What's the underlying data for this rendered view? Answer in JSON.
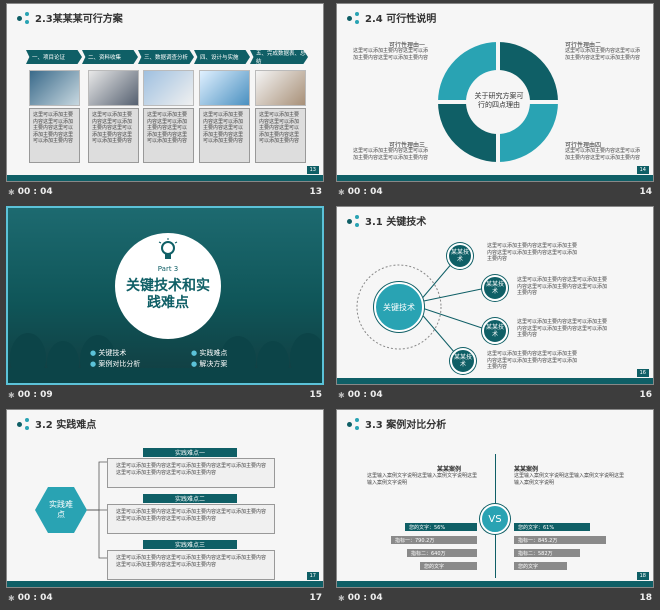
{
  "slides": [
    {
      "num": "13",
      "time": "00 : 04",
      "slide_num": "13",
      "title": "2.3某某某可行方案",
      "steps": [
        "一、项目论证",
        "二、资料收集",
        "三、数据调查分析",
        "四、设计与实施",
        "五、完成数据表、总结"
      ],
      "text": "这里可以添加主要内容这里可以添加主要内容这里可以添加主要内容这里可以添加主要内容"
    },
    {
      "num": "14",
      "time": "00 : 04",
      "slide_num": "14",
      "title": "2.4 可行性说明",
      "center": "关于研究方案可行的四点理由",
      "reasons": [
        "可行性理由一",
        "可行性理由二",
        "可行性理由三",
        "可行性理由四"
      ],
      "text": "这里可以添加主要内容这里可以添加主要内容这里可以添加主要内容"
    },
    {
      "num": "15",
      "time": "00 : 09",
      "part": "Part 3",
      "title": "关键技术和实践难点",
      "items": [
        "关键技术",
        "实践难点",
        "案例对比分析",
        "解决方案"
      ]
    },
    {
      "num": "16",
      "time": "00 : 04",
      "slide_num": "16",
      "title": "3.1 关键技术",
      "center": "关键技术",
      "nodes": [
        "某某技术",
        "某某技术",
        "某某技术",
        "某某技术"
      ],
      "text": "这里可以添加主要内容这里可以添加主要内容这里可以添加主要内容这里可以添加主要内容"
    },
    {
      "num": "17",
      "time": "00 : 04",
      "slide_num": "17",
      "title": "3.2 实践难点",
      "center": "实践难点",
      "labels": [
        "实践难点一",
        "实践难点二",
        "实践难点三"
      ],
      "text": "这里可以添加主要内容这里可以添加主要内容这里可以添加主要内容这里可以添加主要内容这里可以添加主要内容"
    },
    {
      "num": "18",
      "time": "00 : 04",
      "slide_num": "18",
      "title": "3.3 案例对比分析",
      "left_name": "某某案例",
      "right_name": "某某案例",
      "vs": "VS",
      "left_text": "这里输入案例文字说明这里输入案例文字说明这里输入案例文字说明",
      "right_text": "这里输入案例文字说明这里输入案例文字说明这里输入案例文字说明",
      "left_bars": [
        "您的文字：56%",
        "指标一：790.2万",
        "指标二：640万",
        "您的文字"
      ],
      "right_bars": [
        "您的文字：61%",
        "指标一：845.2万",
        "指标二：582万",
        "您的文字"
      ],
      "left_values": [
        0.56,
        0.72,
        0.54,
        0.4
      ],
      "right_values": [
        0.61,
        0.78,
        0.5,
        0.36
      ]
    }
  ],
  "colors": {
    "teal": "#0f5f66",
    "accent": "#29a3b3",
    "selected": "#5bc2d8"
  }
}
